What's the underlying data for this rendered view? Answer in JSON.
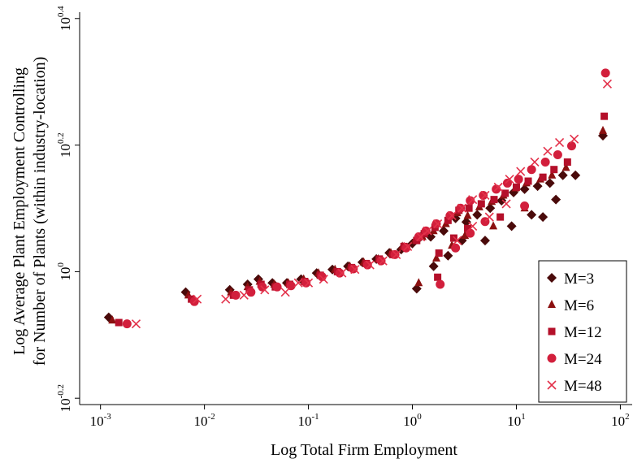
{
  "chart_data": {
    "type": "scatter",
    "title": "",
    "xlabel": "Log Total Firm Employment",
    "ylabel_lines": [
      "Log Average Plant Employment Controlling",
      "for Number of Plants (within industry-location)"
    ],
    "x_scale": "log10",
    "y_scale": "log10",
    "xlim": [
      0.00063,
      130
    ],
    "ylim": [
      0.6166,
      2.5704
    ],
    "x_ticks": [
      {
        "value": 0.001,
        "base": "10",
        "exp": "-3"
      },
      {
        "value": 0.01,
        "base": "10",
        "exp": "-2"
      },
      {
        "value": 0.1,
        "base": "10",
        "exp": "-1"
      },
      {
        "value": 1,
        "base": "10",
        "exp": "0"
      },
      {
        "value": 10,
        "base": "10",
        "exp": "1"
      },
      {
        "value": 100,
        "base": "10",
        "exp": "2"
      }
    ],
    "y_ticks": [
      {
        "value": 0.631,
        "base": "10",
        "exp": "-0.2"
      },
      {
        "value": 1.0,
        "base": "10",
        "exp": "0"
      },
      {
        "value": 1.585,
        "base": "10",
        "exp": "0.2"
      },
      {
        "value": 2.512,
        "base": "10",
        "exp": "0.4"
      }
    ],
    "grid": false,
    "legend_position": "bottom-right",
    "series": [
      {
        "name": "M=3",
        "marker": "diamond",
        "color": "#4a0a0a",
        "x": [
          0.0012,
          0.0066,
          0.0175,
          0.026,
          0.033,
          0.045,
          0.062,
          0.085,
          0.12,
          0.17,
          0.24,
          0.33,
          0.45,
          0.6,
          0.78,
          1.0,
          1.2,
          1.5,
          2.0,
          2.6,
          3.3,
          4.2,
          5.6,
          7.2,
          9.4,
          12,
          16,
          21,
          28,
          37,
          68,
          1.1,
          1.6,
          2.2,
          3.0,
          5.0,
          9.0,
          14,
          18,
          24
        ],
        "y": [
          0.847,
          0.928,
          0.936,
          0.955,
          0.973,
          0.96,
          0.96,
          0.973,
          0.995,
          1.008,
          1.02,
          1.035,
          1.047,
          1.071,
          1.084,
          1.108,
          1.135,
          1.135,
          1.16,
          1.214,
          1.198,
          1.23,
          1.26,
          1.295,
          1.334,
          1.35,
          1.365,
          1.38,
          1.42,
          1.42,
          1.64,
          0.94,
          1.02,
          1.06,
          1.12,
          1.12,
          1.18,
          1.23,
          1.22,
          1.3
        ]
      },
      {
        "name": "M=6",
        "marker": "triangle",
        "color": "#8b1010",
        "x": [
          0.0013,
          0.007,
          0.018,
          0.026,
          0.034,
          0.047,
          0.064,
          0.09,
          0.125,
          0.18,
          0.25,
          0.34,
          0.47,
          0.62,
          0.8,
          1.05,
          1.25,
          1.6,
          2.1,
          2.7,
          3.4,
          4.4,
          5.8,
          7.5,
          9.8,
          12.5,
          17,
          22,
          30,
          68,
          1.15,
          1.7,
          2.4,
          3.2,
          6.0,
          12
        ],
        "y": [
          0.838,
          0.918,
          0.928,
          0.946,
          0.965,
          0.955,
          0.96,
          0.973,
          0.995,
          1.008,
          1.02,
          1.035,
          1.047,
          1.071,
          1.096,
          1.12,
          1.135,
          1.16,
          1.19,
          1.238,
          1.226,
          1.265,
          1.29,
          1.32,
          1.355,
          1.38,
          1.4,
          1.42,
          1.46,
          1.67,
          0.96,
          1.05,
          1.1,
          1.14,
          1.18,
          1.26
        ]
      },
      {
        "name": "M=12",
        "marker": "square",
        "color": "#b4102a",
        "x": [
          0.0015,
          0.0075,
          0.019,
          0.027,
          0.035,
          0.048,
          0.066,
          0.092,
          0.13,
          0.19,
          0.26,
          0.36,
          0.48,
          0.65,
          0.83,
          1.1,
          1.3,
          1.65,
          2.2,
          2.8,
          3.5,
          4.6,
          6.1,
          7.8,
          10,
          13,
          18,
          23,
          31,
          70,
          1.75,
          1.8,
          2.5,
          3.4,
          7.0
        ],
        "y": [
          0.831,
          0.905,
          0.918,
          0.936,
          0.955,
          0.946,
          0.955,
          0.965,
          0.987,
          1.0,
          1.015,
          1.03,
          1.047,
          1.064,
          1.096,
          1.12,
          1.148,
          1.175,
          1.205,
          1.25,
          1.26,
          1.28,
          1.3,
          1.33,
          1.36,
          1.39,
          1.41,
          1.45,
          1.49,
          1.76,
          0.98,
          1.07,
          1.13,
          1.17,
          1.22
        ]
      },
      {
        "name": "M=24",
        "marker": "circle",
        "color": "#d21f3c",
        "x": [
          0.0018,
          0.008,
          0.02,
          0.028,
          0.036,
          0.05,
          0.068,
          0.095,
          0.135,
          0.2,
          0.27,
          0.37,
          0.5,
          0.68,
          0.87,
          1.15,
          1.35,
          1.7,
          2.3,
          2.9,
          3.6,
          4.8,
          6.4,
          8.2,
          10.5,
          14,
          19,
          25,
          34,
          72,
          1.85,
          2.6,
          3.6,
          5.0,
          12
        ],
        "y": [
          0.827,
          0.897,
          0.918,
          0.928,
          0.946,
          0.946,
          0.95,
          0.96,
          0.982,
          0.995,
          1.01,
          1.025,
          1.04,
          1.064,
          1.09,
          1.135,
          1.16,
          1.19,
          1.226,
          1.26,
          1.295,
          1.32,
          1.35,
          1.38,
          1.4,
          1.45,
          1.49,
          1.53,
          1.58,
          2.06,
          0.955,
          1.09,
          1.15,
          1.2,
          1.27
        ]
      },
      {
        "name": "M=48",
        "marker": "x",
        "color": "#e3314a",
        "x": [
          0.0022,
          0.0085,
          0.016,
          0.024,
          0.038,
          0.06,
          0.08,
          0.1,
          0.14,
          0.21,
          0.28,
          0.39,
          0.52,
          0.7,
          0.9,
          1.2,
          1.4,
          1.75,
          2.4,
          3.0,
          3.8,
          5.0,
          6.7,
          8.6,
          11,
          15,
          20,
          26,
          36,
          75,
          2.7,
          3.8,
          5.5,
          8.0
        ],
        "y": [
          0.827,
          0.905,
          0.905,
          0.918,
          0.936,
          0.928,
          0.96,
          0.96,
          0.973,
          0.995,
          1.008,
          1.025,
          1.04,
          1.064,
          1.096,
          1.135,
          1.16,
          1.19,
          1.226,
          1.26,
          1.3,
          1.32,
          1.36,
          1.4,
          1.44,
          1.49,
          1.55,
          1.6,
          1.62,
          1.98,
          1.12,
          1.18,
          1.22,
          1.28
        ]
      }
    ]
  }
}
